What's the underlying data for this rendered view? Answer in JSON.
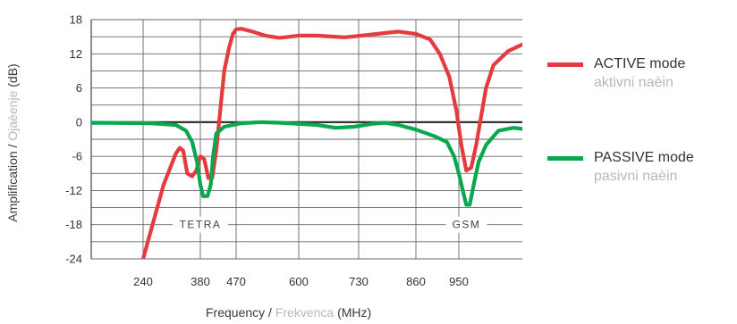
{
  "chart_data": {
    "type": "line",
    "ylabel_parts": [
      "Amplification",
      "/",
      "Ojaèenje",
      "(dB)"
    ],
    "xlabel_parts": [
      "Frequency",
      "/",
      "Frekvenca",
      "(MHz)"
    ],
    "y_ticks": [
      "18",
      "12",
      "6",
      "0",
      "-6",
      "-12",
      "-18",
      "-24"
    ],
    "x_ticks": [
      "240",
      "380",
      "470",
      "600",
      "730",
      "860",
      "950"
    ],
    "ylim": [
      -24,
      18
    ],
    "band_labels": [
      "TETRA",
      "GSM"
    ],
    "series": [
      {
        "name": "ACTIVE mode",
        "name_sub": "aktivni naèin",
        "color": "#e53a3f",
        "points": [
          [
            240,
            -24
          ],
          [
            290,
            -11
          ],
          [
            320,
            -5.5
          ],
          [
            330,
            -4.5
          ],
          [
            338,
            -5
          ],
          [
            348,
            -9
          ],
          [
            360,
            -9.5
          ],
          [
            370,
            -8.5
          ],
          [
            380,
            -6
          ],
          [
            390,
            -6.5
          ],
          [
            400,
            -9.8
          ],
          [
            410,
            -9.8
          ],
          [
            420,
            -5
          ],
          [
            430,
            2
          ],
          [
            440,
            9
          ],
          [
            452,
            13
          ],
          [
            462,
            15.5
          ],
          [
            470,
            16.3
          ],
          [
            480,
            16.4
          ],
          [
            500,
            16
          ],
          [
            530,
            15.2
          ],
          [
            560,
            14.8
          ],
          [
            600,
            15.2
          ],
          [
            640,
            15.2
          ],
          [
            700,
            14.9
          ],
          [
            760,
            15.4
          ],
          [
            820,
            15.9
          ],
          [
            860,
            15.5
          ],
          [
            890,
            14.5
          ],
          [
            910,
            12
          ],
          [
            930,
            8
          ],
          [
            945,
            2
          ],
          [
            955,
            -4
          ],
          [
            965,
            -8.5
          ],
          [
            975,
            -8
          ],
          [
            985,
            -4
          ],
          [
            995,
            1
          ],
          [
            1005,
            6
          ],
          [
            1020,
            10
          ],
          [
            1050,
            12.5
          ],
          [
            1080,
            13.7
          ]
        ]
      },
      {
        "name": "PASSIVE mode",
        "name_sub": "pasivni naèin",
        "color": "#0aa84e",
        "points": [
          [
            40,
            -1.2
          ],
          [
            100,
            -0.5
          ],
          [
            180,
            -0.1
          ],
          [
            260,
            -0.2
          ],
          [
            320,
            -0.5
          ],
          [
            345,
            -1.5
          ],
          [
            360,
            -3.5
          ],
          [
            372,
            -7
          ],
          [
            380,
            -11
          ],
          [
            387,
            -13
          ],
          [
            398,
            -13
          ],
          [
            406,
            -11
          ],
          [
            412,
            -6
          ],
          [
            420,
            -2
          ],
          [
            440,
            -0.8
          ],
          [
            480,
            -0.2
          ],
          [
            520,
            0
          ],
          [
            560,
            -0.1
          ],
          [
            600,
            -0.3
          ],
          [
            640,
            -0.5
          ],
          [
            680,
            -1
          ],
          [
            720,
            -0.8
          ],
          [
            760,
            -0.3
          ],
          [
            790,
            -0.1
          ],
          [
            820,
            -0.5
          ],
          [
            860,
            -1.3
          ],
          [
            900,
            -2.5
          ],
          [
            925,
            -3.5
          ],
          [
            940,
            -6
          ],
          [
            950,
            -9
          ],
          [
            958,
            -12
          ],
          [
            965,
            -14.5
          ],
          [
            972,
            -14.5
          ],
          [
            980,
            -11
          ],
          [
            990,
            -7
          ],
          [
            1005,
            -4
          ],
          [
            1030,
            -1.5
          ],
          [
            1060,
            -1
          ],
          [
            1080,
            -1.2
          ]
        ]
      }
    ]
  }
}
